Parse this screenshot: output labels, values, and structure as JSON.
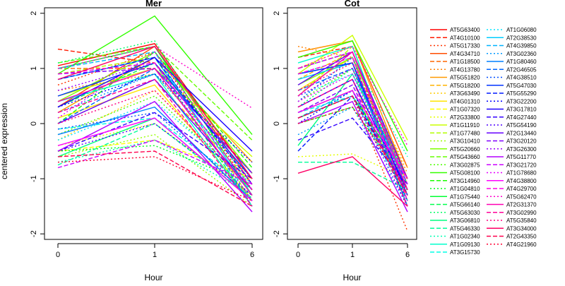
{
  "chart_data": [
    {
      "type": "line",
      "title": "Mer",
      "xlabel": "Hour",
      "ylabel": "centered expression",
      "categories": [
        "0",
        "1",
        "6"
      ],
      "ylim": [
        -2.1,
        2.1
      ],
      "yticks": [
        -2,
        -1,
        0,
        1,
        2
      ],
      "series": [
        {
          "name": "AT5G63400",
          "values": [
            1.05,
            1.45,
            -1.0
          ]
        },
        {
          "name": "AT4G10100",
          "values": [
            1.35,
            1.1,
            -0.9
          ]
        },
        {
          "name": "AT5G17330",
          "values": [
            0.7,
            1.3,
            -1.2
          ]
        },
        {
          "name": "AT4G34710",
          "values": [
            0.3,
            1.4,
            -1.1
          ]
        },
        {
          "name": "AT1G18500",
          "values": [
            1.0,
            1.0,
            -1.3
          ]
        },
        {
          "name": "AT4G13780",
          "values": [
            0.6,
            0.9,
            -1.0
          ]
        },
        {
          "name": "AT5G51820",
          "values": [
            0.2,
            1.2,
            -0.7
          ]
        },
        {
          "name": "AT5G18200",
          "values": [
            0.0,
            0.8,
            -1.1
          ]
        },
        {
          "name": "AT3G63490",
          "values": [
            -0.3,
            0.6,
            -1.2
          ]
        },
        {
          "name": "AT4G01310",
          "values": [
            0.1,
            0.7,
            -1.4
          ]
        },
        {
          "name": "AT1G07320",
          "values": [
            -0.5,
            -0.3,
            -1.0
          ]
        },
        {
          "name": "AT2G33800",
          "values": [
            -0.4,
            0.0,
            -1.3
          ]
        },
        {
          "name": "AT1G11910",
          "values": [
            0.5,
            1.0,
            -0.6
          ]
        },
        {
          "name": "AT1G77480",
          "values": [
            0.9,
            1.2,
            -1.4
          ]
        },
        {
          "name": "AT3G10410",
          "values": [
            -0.6,
            -0.2,
            -1.5
          ]
        },
        {
          "name": "AT5G20660",
          "values": [
            0.4,
            1.3,
            -0.9
          ]
        },
        {
          "name": "AT5G43660",
          "values": [
            1.1,
            1.4,
            -0.3
          ]
        },
        {
          "name": "AT3G02875",
          "values": [
            -0.2,
            0.5,
            -1.2
          ]
        },
        {
          "name": "AT5G08100",
          "values": [
            0.9,
            1.95,
            -0.2
          ]
        },
        {
          "name": "AT3G14960",
          "values": [
            0.0,
            1.3,
            -0.8
          ]
        },
        {
          "name": "AT1G04810",
          "values": [
            -0.5,
            -0.4,
            -1.1
          ]
        },
        {
          "name": "AT1G75440",
          "values": [
            1.0,
            1.4,
            -1.3
          ]
        },
        {
          "name": "AT5G66140",
          "values": [
            0.3,
            1.1,
            -1.5
          ]
        },
        {
          "name": "AT5G63030",
          "values": [
            1.1,
            1.5,
            -1.2
          ]
        },
        {
          "name": "AT3G06810",
          "values": [
            -0.6,
            0.1,
            -1.4
          ]
        },
        {
          "name": "AT5G46330",
          "values": [
            -0.75,
            0.0,
            -1.35
          ]
        },
        {
          "name": "AT1G02340",
          "values": [
            -0.7,
            -0.3,
            -1.3
          ]
        },
        {
          "name": "AT1G09130",
          "values": [
            0.4,
            0.9,
            -1.5
          ]
        },
        {
          "name": "AT3G15730",
          "values": [
            -0.1,
            0.1,
            -1.2
          ]
        },
        {
          "name": "AT1G06080",
          "values": [
            -0.3,
            0.4,
            -1.1
          ]
        },
        {
          "name": "AT2G38530",
          "values": [
            0.8,
            1.2,
            -1.3
          ]
        },
        {
          "name": "AT4G39850",
          "values": [
            1.0,
            1.3,
            -1.5
          ]
        },
        {
          "name": "AT3G02360",
          "values": [
            0.2,
            0.9,
            -1.0
          ]
        },
        {
          "name": "AT1G80460",
          "values": [
            -0.2,
            0.3,
            -1.4
          ]
        },
        {
          "name": "AT2G46505",
          "values": [
            0.0,
            1.0,
            -0.9
          ]
        },
        {
          "name": "AT4G38510",
          "values": [
            -0.1,
            0.2,
            -1.3
          ]
        },
        {
          "name": "AT5G47030",
          "values": [
            0.5,
            1.1,
            -1.0
          ]
        },
        {
          "name": "AT5G55290",
          "values": [
            0.8,
            1.2,
            -1.1
          ]
        },
        {
          "name": "AT3G22200",
          "values": [
            0.3,
            0.9,
            -0.7
          ]
        },
        {
          "name": "AT3G17810",
          "values": [
            0.3,
            1.2,
            -0.5
          ]
        },
        {
          "name": "AT4G27440",
          "values": [
            -0.5,
            0.2,
            -1.0
          ]
        },
        {
          "name": "AT5G54190",
          "values": [
            -0.5,
            0.0,
            -1.3
          ]
        },
        {
          "name": "AT2G13440",
          "values": [
            0.0,
            0.8,
            -1.2
          ]
        },
        {
          "name": "AT3G20120",
          "values": [
            0.9,
            1.0,
            -0.9
          ]
        },
        {
          "name": "AT3G26300",
          "values": [
            0.6,
            1.1,
            -1.4
          ]
        },
        {
          "name": "AT5G11770",
          "values": [
            -0.5,
            0.4,
            -1.6
          ]
        },
        {
          "name": "AT3G21720",
          "values": [
            -0.8,
            -0.3,
            -1.1
          ]
        },
        {
          "name": "AT1G78680",
          "values": [
            0.1,
            1.3,
            -1.1
          ]
        },
        {
          "name": "AT4G38800",
          "values": [
            -0.4,
            0.1,
            -1.4
          ]
        },
        {
          "name": "AT4G29700",
          "values": [
            0.9,
            1.1,
            -1.2
          ]
        },
        {
          "name": "AT5G62470",
          "values": [
            1.0,
            1.4,
            0.28
          ]
        },
        {
          "name": "AT2G31370",
          "values": [
            0.4,
            1.0,
            -1.3
          ]
        },
        {
          "name": "AT3G02990",
          "values": [
            0.2,
            0.8,
            -1.5
          ]
        },
        {
          "name": "AT5G35840",
          "values": [
            0.0,
            0.6,
            -1.2
          ]
        },
        {
          "name": "AT3G34000",
          "values": [
            0.8,
            1.4,
            -1.0
          ]
        },
        {
          "name": "AT2G43350",
          "values": [
            -0.6,
            -0.5,
            -1.5
          ]
        },
        {
          "name": "AT4G21960",
          "values": [
            -0.7,
            -0.6,
            -1.4
          ]
        }
      ]
    },
    {
      "type": "line",
      "title": "Cot",
      "xlabel": "Hour",
      "ylabel": "",
      "categories": [
        "0",
        "1",
        "6"
      ],
      "ylim": [
        -2.1,
        2.1
      ],
      "yticks": [
        -2,
        -1,
        0,
        1,
        2
      ],
      "series": [
        {
          "name": "AT5G63400",
          "values": [
            0.2,
            0.6,
            -1.3
          ]
        },
        {
          "name": "AT4G10100",
          "values": [
            1.2,
            1.4,
            -1.2
          ]
        },
        {
          "name": "AT5G17330",
          "values": [
            0.1,
            0.5,
            -1.95
          ]
        },
        {
          "name": "AT4G34710",
          "values": [
            1.3,
            1.5,
            -0.8
          ]
        },
        {
          "name": "AT1G18500",
          "values": [
            1.0,
            1.3,
            -1.4
          ]
        },
        {
          "name": "AT4G13780",
          "values": [
            1.4,
            1.2,
            -0.9
          ]
        },
        {
          "name": "AT5G51820",
          "values": [
            1.3,
            1.5,
            -1.0
          ]
        },
        {
          "name": "AT5G18200",
          "values": [
            0.8,
            1.3,
            -1.1
          ]
        },
        {
          "name": "AT3G63490",
          "values": [
            0.5,
            1.0,
            -0.8
          ]
        },
        {
          "name": "AT4G01310",
          "values": [
            0.6,
            1.2,
            -1.5
          ]
        },
        {
          "name": "AT1G07320",
          "values": [
            1.0,
            1.4,
            -1.3
          ]
        },
        {
          "name": "AT2G33800",
          "values": [
            -0.6,
            -0.55,
            -1.0
          ]
        },
        {
          "name": "AT1G11910",
          "values": [
            0.9,
            1.6,
            -0.3
          ]
        },
        {
          "name": "AT1G77480",
          "values": [
            0.5,
            1.4,
            -1.2
          ]
        },
        {
          "name": "AT3G10410",
          "values": [
            0.3,
            0.8,
            -1.4
          ]
        },
        {
          "name": "AT5G20660",
          "values": [
            0.7,
            1.2,
            -1.0
          ]
        },
        {
          "name": "AT5G43660",
          "values": [
            0.2,
            0.6,
            -1.2
          ]
        },
        {
          "name": "AT3G02875",
          "values": [
            0.4,
            1.0,
            -1.5
          ]
        },
        {
          "name": "AT5G08100",
          "values": [
            1.2,
            1.5,
            -0.5
          ]
        },
        {
          "name": "AT3G14960",
          "values": [
            0.0,
            0.3,
            -1.1
          ]
        },
        {
          "name": "AT1G04810",
          "values": [
            1.0,
            1.3,
            -1.3
          ]
        },
        {
          "name": "AT1G75440",
          "values": [
            0.1,
            0.5,
            -1.0
          ]
        },
        {
          "name": "AT5G66140",
          "values": [
            0.8,
            1.1,
            -1.4
          ]
        },
        {
          "name": "AT5G63030",
          "values": [
            0.3,
            1.0,
            -1.3
          ]
        },
        {
          "name": "AT3G06810",
          "values": [
            -0.4,
            0.9,
            -1.0
          ]
        },
        {
          "name": "AT5G46330",
          "values": [
            -0.7,
            -0.7,
            -1.2
          ]
        },
        {
          "name": "AT1G02340",
          "values": [
            0.9,
            1.2,
            -0.6
          ]
        },
        {
          "name": "AT1G09130",
          "values": [
            1.1,
            1.4,
            -1.2
          ]
        },
        {
          "name": "AT3G15730",
          "values": [
            0.2,
            0.5,
            -1.4
          ]
        },
        {
          "name": "AT1G06080",
          "values": [
            0.5,
            0.9,
            -1.1
          ]
        },
        {
          "name": "AT2G38530",
          "values": [
            0.8,
            1.1,
            -1.2
          ]
        },
        {
          "name": "AT4G39850",
          "values": [
            0.1,
            0.6,
            -1.3
          ]
        },
        {
          "name": "AT3G02360",
          "values": [
            -0.2,
            0.3,
            -1.5
          ]
        },
        {
          "name": "AT1G80460",
          "values": [
            0.9,
            1.1,
            -1.5
          ]
        },
        {
          "name": "AT2G46505",
          "values": [
            0.6,
            1.0,
            -1.1
          ]
        },
        {
          "name": "AT4G38510",
          "values": [
            0.4,
            1.2,
            -1.4
          ]
        },
        {
          "name": "AT5G47030",
          "values": [
            0.9,
            1.1,
            -1.3
          ]
        },
        {
          "name": "AT5G55290",
          "values": [
            -0.5,
            0.5,
            -1.2
          ]
        },
        {
          "name": "AT3G22200",
          "values": [
            0.0,
            0.6,
            -1.4
          ]
        },
        {
          "name": "AT3G17810",
          "values": [
            0.3,
            0.8,
            -1.2
          ]
        },
        {
          "name": "AT4G27440",
          "values": [
            -0.3,
            0.1,
            -1.1
          ]
        },
        {
          "name": "AT5G54190",
          "values": [
            0.1,
            0.5,
            -1.5
          ]
        },
        {
          "name": "AT2G13440",
          "values": [
            0.7,
            1.3,
            -1.0
          ]
        },
        {
          "name": "AT3G20120",
          "values": [
            0.2,
            0.7,
            -1.3
          ]
        },
        {
          "name": "AT3G26300",
          "values": [
            0.5,
            1.0,
            -1.2
          ]
        },
        {
          "name": "AT5G11770",
          "values": [
            0.0,
            0.4,
            -1.6
          ]
        },
        {
          "name": "AT3G21720",
          "values": [
            1.0,
            1.3,
            -1.1
          ]
        },
        {
          "name": "AT1G78680",
          "values": [
            0.4,
            0.9,
            -1.3
          ]
        },
        {
          "name": "AT4G38800",
          "values": [
            0.2,
            0.6,
            -1.0
          ]
        },
        {
          "name": "AT4G29700",
          "values": [
            0.9,
            1.2,
            -1.4
          ]
        },
        {
          "name": "AT5G62470",
          "values": [
            1.0,
            1.4,
            -0.4
          ]
        },
        {
          "name": "AT2G31370",
          "values": [
            0.5,
            1.3,
            -1.2
          ]
        },
        {
          "name": "AT3G02990",
          "values": [
            0.3,
            0.8,
            -1.5
          ]
        },
        {
          "name": "AT5G35840",
          "values": [
            0.6,
            1.1,
            -1.0
          ]
        },
        {
          "name": "AT3G34000",
          "values": [
            -0.9,
            -0.6,
            -1.5
          ]
        },
        {
          "name": "AT2G43350",
          "values": [
            0.1,
            0.5,
            -1.3
          ]
        },
        {
          "name": "AT4G21960",
          "values": [
            0.0,
            0.3,
            -1.2
          ]
        }
      ]
    }
  ],
  "legend": {
    "placement": "right",
    "colors": [
      "#FF0000",
      "#FF1A00",
      "#FF3300",
      "#FF4D00",
      "#FF6600",
      "#FF8000",
      "#FF9900",
      "#FFB300",
      "#FFCC00",
      "#FFE500",
      "#FFFF00",
      "#E5FF00",
      "#CCFF00",
      "#B3FF00",
      "#99FF00",
      "#80FF00",
      "#66FF00",
      "#4DFF00",
      "#33FF00",
      "#1AFF00",
      "#00FF1A",
      "#00FF33",
      "#00FF4D",
      "#00FF66",
      "#00FF80",
      "#00FF99",
      "#00FFB3",
      "#00FFCC",
      "#00FFE5",
      "#00E5FF",
      "#00CCFF",
      "#00B3FF",
      "#0099FF",
      "#0080FF",
      "#0066FF",
      "#004DFF",
      "#0033FF",
      "#001AFF",
      "#0000FF",
      "#1A00FF",
      "#3300FF",
      "#4D00FF",
      "#6600FF",
      "#8000FF",
      "#9900FF",
      "#B300FF",
      "#CC00FF",
      "#E500FF",
      "#FF00FF",
      "#FF00E5",
      "#FF00CC",
      "#FF00B3",
      "#FF0099",
      "#FF0080",
      "#FF0066",
      "#FF004D",
      "#FF0033"
    ],
    "dash_cycle": [
      "solid",
      "dashed",
      "dotted"
    ]
  }
}
